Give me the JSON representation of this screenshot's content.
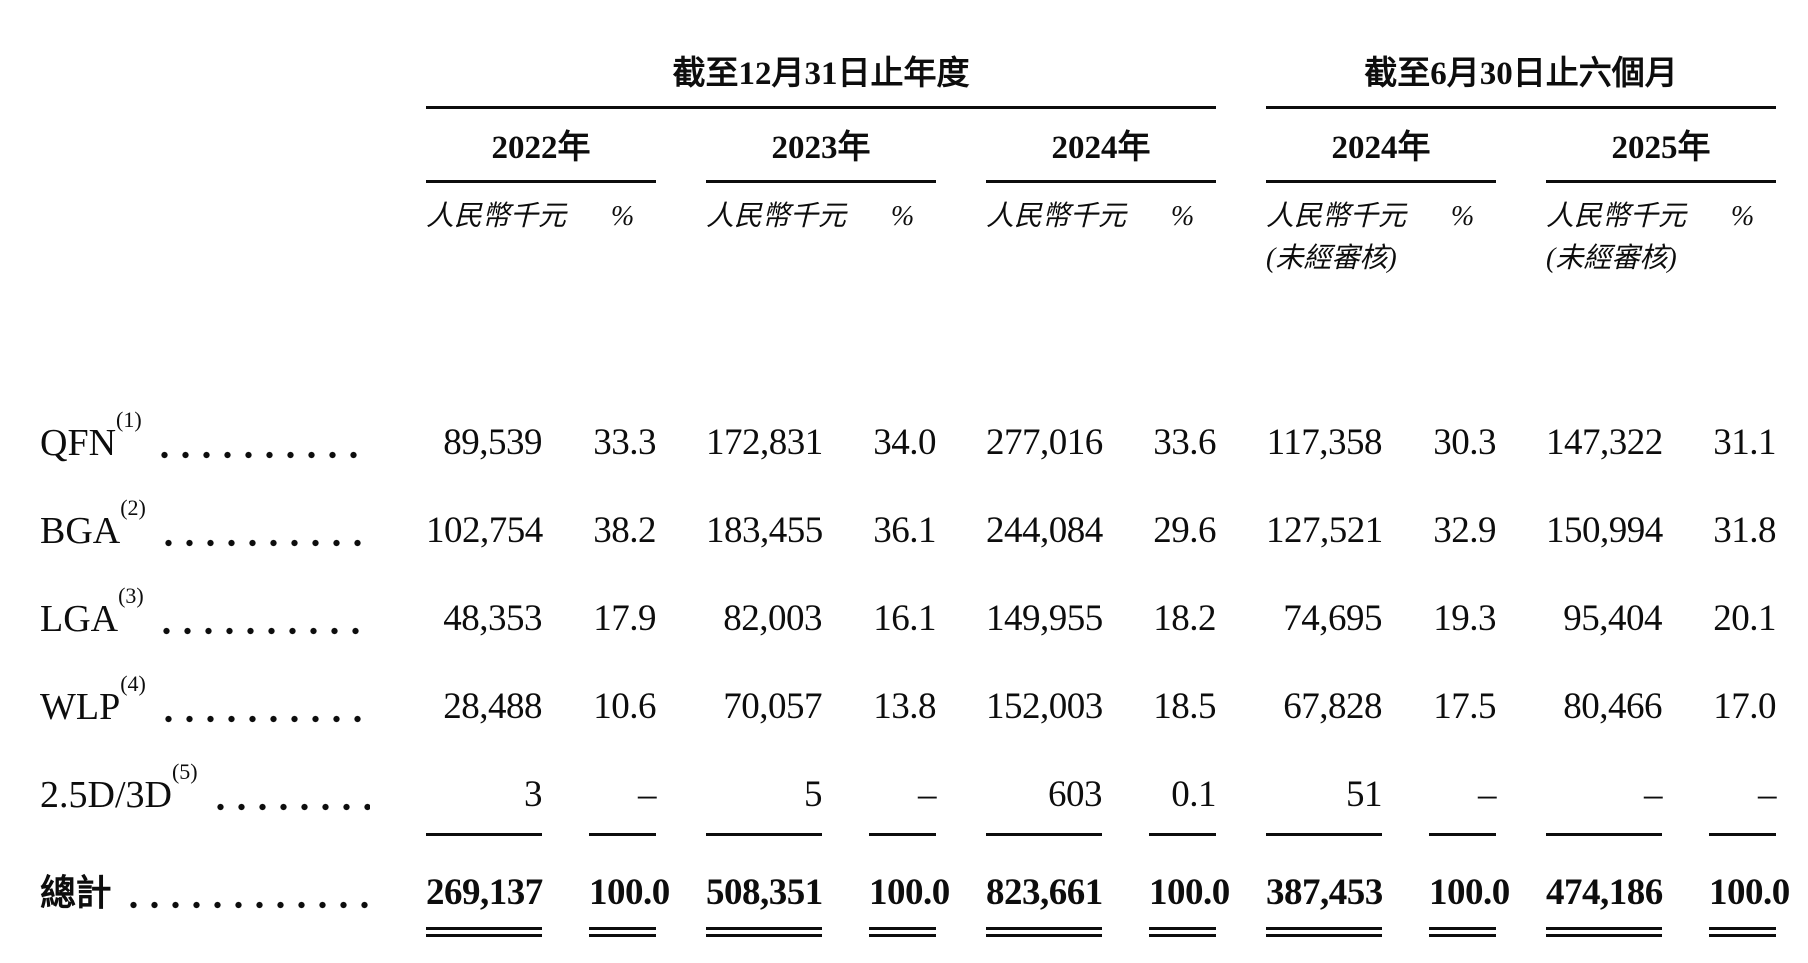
{
  "table": {
    "col_groups": [
      {
        "title": "截至12月31日止年度"
      },
      {
        "title": "截至6月30日止六個月"
      }
    ],
    "years": [
      "2022年",
      "2023年",
      "2024年",
      "2024年",
      "2025年"
    ],
    "unit_label": "人民幣千元",
    "percent_label": "%",
    "unaudited_label": "(未經審核)",
    "rows": [
      {
        "label": "QFN",
        "footnote": "(1)",
        "values": [
          "89,539",
          "33.3",
          "172,831",
          "34.0",
          "277,016",
          "33.6",
          "117,358",
          "30.3",
          "147,322",
          "31.1"
        ]
      },
      {
        "label": "BGA",
        "footnote": "(2)",
        "values": [
          "102,754",
          "38.2",
          "183,455",
          "36.1",
          "244,084",
          "29.6",
          "127,521",
          "32.9",
          "150,994",
          "31.8"
        ]
      },
      {
        "label": "LGA",
        "footnote": "(3)",
        "values": [
          "48,353",
          "17.9",
          "82,003",
          "16.1",
          "149,955",
          "18.2",
          "74,695",
          "19.3",
          "95,404",
          "20.1"
        ]
      },
      {
        "label": "WLP",
        "footnote": "(4)",
        "values": [
          "28,488",
          "10.6",
          "70,057",
          "13.8",
          "152,003",
          "18.5",
          "67,828",
          "17.5",
          "80,466",
          "17.0"
        ]
      },
      {
        "label": "2.5D/3D",
        "footnote": "(5)",
        "values": [
          "3",
          "–",
          "5",
          "–",
          "603",
          "0.1",
          "51",
          "–",
          "–",
          "–"
        ]
      }
    ],
    "total": {
      "label": "總計",
      "values": [
        "269,137",
        "100.0",
        "508,351",
        "100.0",
        "823,661",
        "100.0",
        "387,453",
        "100.0",
        "474,186",
        "100.0"
      ]
    }
  }
}
